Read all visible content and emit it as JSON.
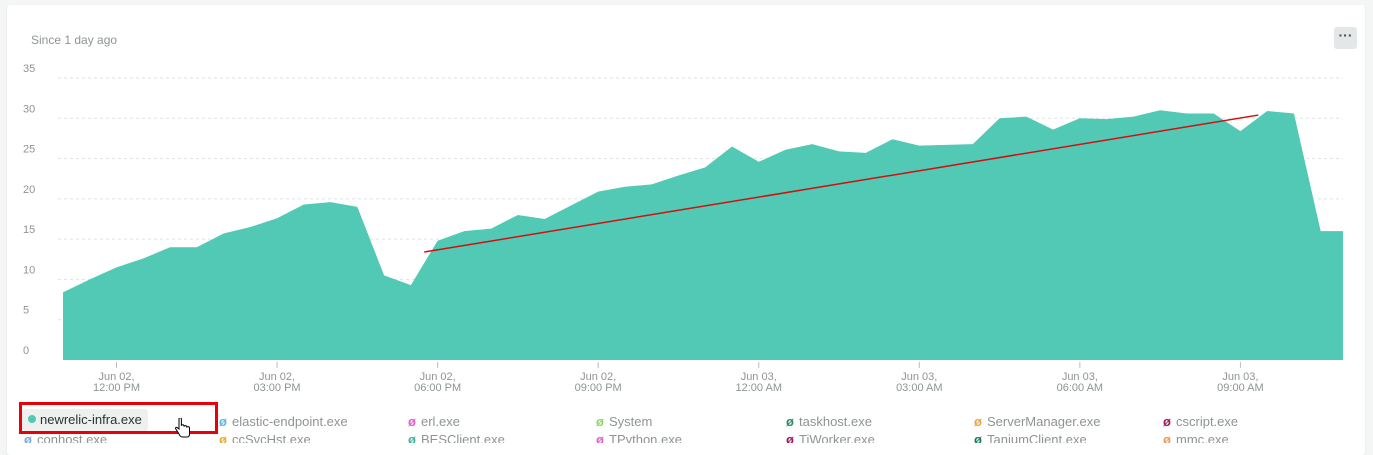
{
  "card": {
    "subtitle": "Since 1 day ago",
    "menu_label": "···"
  },
  "colors": {
    "area": "#51c9b5",
    "trend": "#d01010",
    "grid": "#dfe3e3",
    "axis_text": "#8e9494"
  },
  "chart_data": {
    "type": "area",
    "title": "",
    "xlabel": "",
    "ylabel": "",
    "ylim": [
      0,
      35
    ],
    "yticks": [
      0,
      5,
      10,
      15,
      20,
      25,
      30,
      35
    ],
    "grid": true,
    "xticks": [
      {
        "label1": "Jun 02,",
        "label2": "12:00 PM",
        "t": 0
      },
      {
        "label1": "Jun 02,",
        "label2": "03:00 PM",
        "t": 180
      },
      {
        "label1": "Jun 02,",
        "label2": "06:00 PM",
        "t": 360
      },
      {
        "label1": "Jun 02,",
        "label2": "09:00 PM",
        "t": 540
      },
      {
        "label1": "Jun 03,",
        "label2": "12:00 AM",
        "t": 720
      },
      {
        "label1": "Jun 03,",
        "label2": "03:00 AM",
        "t": 900
      },
      {
        "label1": "Jun 03,",
        "label2": "06:00 AM",
        "t": 1080
      },
      {
        "label1": "Jun 03,",
        "label2": "09:00 AM",
        "t": 1260
      }
    ],
    "series": [
      {
        "name": "newrelic-infra.exe",
        "x": [
          -60,
          -30,
          0,
          30,
          60,
          90,
          120,
          150,
          180,
          210,
          240,
          270,
          300,
          330,
          360,
          390,
          420,
          450,
          480,
          510,
          540,
          570,
          600,
          630,
          660,
          690,
          720,
          750,
          780,
          810,
          840,
          870,
          900,
          930,
          960,
          990,
          1020,
          1050,
          1080,
          1110,
          1140,
          1170,
          1200,
          1230,
          1260,
          1290,
          1320,
          1350,
          1375
        ],
        "values": [
          8.4,
          10.0,
          11.5,
          12.6,
          14.0,
          14.0,
          15.7,
          16.5,
          17.6,
          19.3,
          19.6,
          19.0,
          10.5,
          9.3,
          14.8,
          16.0,
          16.3,
          18.0,
          17.5,
          19.2,
          20.9,
          21.5,
          21.8,
          22.9,
          23.9,
          26.5,
          24.6,
          26.1,
          26.8,
          25.9,
          25.7,
          27.4,
          26.6,
          26.7,
          26.8,
          30.0,
          30.2,
          28.6,
          30.0,
          29.9,
          30.2,
          31.0,
          30.6,
          30.6,
          28.4,
          30.9,
          30.6,
          16.0,
          16.0
        ]
      }
    ],
    "annotations": [
      {
        "type": "trend-line",
        "x": [
          345,
          1280
        ],
        "y": [
          13.4,
          30.4
        ]
      }
    ],
    "legend": [
      {
        "name": "newrelic-infra.exe",
        "color": "#51c9b5",
        "active": true
      },
      {
        "name": "elastic-endpoint.exe",
        "color": "#5bb8e6"
      },
      {
        "name": "erl.exe",
        "color": "#e45cc9"
      },
      {
        "name": "System",
        "color": "#8ed66a"
      },
      {
        "name": "taskhost.exe",
        "color": "#2f8a63"
      },
      {
        "name": "ServerManager.exe",
        "color": "#e8a83a"
      },
      {
        "name": "cscript.exe",
        "color": "#a3195b"
      },
      {
        "name": "conhost.exe",
        "color": "#7fa8d6"
      },
      {
        "name": "ccSvcHst.exe",
        "color": "#e0b030"
      },
      {
        "name": "BESClient.exe",
        "color": "#3fb2a0"
      },
      {
        "name": "TPython.exe",
        "color": "#e062c8"
      },
      {
        "name": "TiWorker.exe",
        "color": "#a01560"
      },
      {
        "name": "TaniumClient.exe",
        "color": "#1a7a55"
      },
      {
        "name": "mmc.exe",
        "color": "#e89a5a"
      }
    ]
  }
}
